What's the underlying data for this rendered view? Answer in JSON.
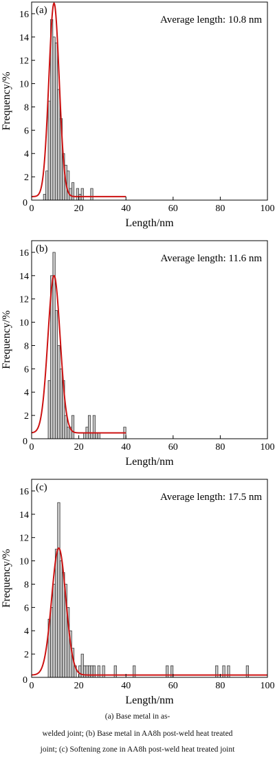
{
  "panels": [
    {
      "label": "(a)",
      "annotation": "Average length: 10.8 nm",
      "xlabel": "Length/nm",
      "ylabel": "Frequency/%"
    },
    {
      "label": "(b)",
      "annotation": "Average length: 11.6 nm",
      "xlabel": "Length/nm",
      "ylabel": "Frequency/%"
    },
    {
      "label": "(c)",
      "annotation": "Average length: 17.5 nm",
      "xlabel": "Length/nm",
      "ylabel": "Frequency/%"
    }
  ],
  "caption": {
    "line1": "(a) Base metal in as-",
    "line2": "welded joint; (b) Base metal in AA8h post-weld heat treated",
    "line3": "joint; (c) Softening zone in AA8h post-weld heat treated joint"
  },
  "chart_data": [
    {
      "type": "bar",
      "title": "",
      "label": "(a)",
      "annotation": "Average length: 10.8 nm",
      "xlabel": "Length/nm",
      "ylabel": "Frequency/%",
      "xlim": [
        0,
        100
      ],
      "ylim": [
        0,
        17
      ],
      "xticks": [
        0,
        20,
        40,
        60,
        80,
        100
      ],
      "yticks": [
        2,
        4,
        6,
        8,
        10,
        12,
        14,
        16
      ],
      "bin_width": 1,
      "bars": [
        {
          "x": 5,
          "y": 0.5
        },
        {
          "x": 6,
          "y": 2.5
        },
        {
          "x": 7,
          "y": 8.5
        },
        {
          "x": 8,
          "y": 15.5
        },
        {
          "x": 9,
          "y": 14
        },
        {
          "x": 10,
          "y": 13.5
        },
        {
          "x": 11,
          "y": 9.5
        },
        {
          "x": 12,
          "y": 7
        },
        {
          "x": 13,
          "y": 4
        },
        {
          "x": 14,
          "y": 3
        },
        {
          "x": 15,
          "y": 2.5
        },
        {
          "x": 16,
          "y": 1
        },
        {
          "x": 17,
          "y": 1.5
        },
        {
          "x": 19,
          "y": 1
        },
        {
          "x": 20,
          "y": 0.5
        },
        {
          "x": 21,
          "y": 1
        },
        {
          "x": 25,
          "y": 1
        }
      ],
      "fit": {
        "type": "gaussian",
        "baseline": 0.3,
        "amplitude": 16.6,
        "mean": 9.5,
        "sigma": 2.2,
        "x_range": [
          0,
          40
        ],
        "color": "#cc1111"
      },
      "grid": false
    },
    {
      "type": "bar",
      "title": "",
      "label": "(b)",
      "annotation": "Average length: 11.6 nm",
      "xlabel": "Length/nm",
      "ylabel": "Frequency/%",
      "xlim": [
        0,
        100
      ],
      "ylim": [
        0,
        17
      ],
      "xticks": [
        0,
        20,
        40,
        60,
        80,
        100
      ],
      "yticks": [
        2,
        4,
        6,
        8,
        10,
        12,
        14,
        16
      ],
      "bin_width": 1,
      "bars": [
        {
          "x": 7,
          "y": 5
        },
        {
          "x": 8,
          "y": 14
        },
        {
          "x": 9,
          "y": 16
        },
        {
          "x": 10,
          "y": 11
        },
        {
          "x": 11,
          "y": 8
        },
        {
          "x": 12,
          "y": 6
        },
        {
          "x": 13,
          "y": 5
        },
        {
          "x": 14,
          "y": 2
        },
        {
          "x": 15,
          "y": 1
        },
        {
          "x": 16,
          "y": 1
        },
        {
          "x": 17,
          "y": 2
        },
        {
          "x": 22,
          "y": 0.5
        },
        {
          "x": 23,
          "y": 1
        },
        {
          "x": 24,
          "y": 2
        },
        {
          "x": 25,
          "y": 0.5
        },
        {
          "x": 26,
          "y": 2
        },
        {
          "x": 27,
          "y": 0.5
        },
        {
          "x": 28,
          "y": 0.5
        },
        {
          "x": 39,
          "y": 1
        }
      ],
      "fit": {
        "type": "gaussian",
        "baseline": 0.5,
        "amplitude": 13.5,
        "mean": 9.5,
        "sigma": 2.6,
        "x_range": [
          0,
          40
        ],
        "color": "#cc1111"
      },
      "grid": false
    },
    {
      "type": "bar",
      "title": "",
      "label": "(c)",
      "annotation": "Average length: 17.5 nm",
      "xlabel": "Length/nm",
      "ylabel": "Frequency/%",
      "xlim": [
        0,
        100
      ],
      "ylim": [
        0,
        17
      ],
      "xticks": [
        0,
        20,
        40,
        60,
        80,
        100
      ],
      "yticks": [
        2,
        4,
        6,
        8,
        10,
        12,
        14,
        16
      ],
      "bin_width": 1,
      "bars": [
        {
          "x": 7,
          "y": 5
        },
        {
          "x": 8,
          "y": 6
        },
        {
          "x": 9,
          "y": 8
        },
        {
          "x": 10,
          "y": 11
        },
        {
          "x": 11,
          "y": 15
        },
        {
          "x": 12,
          "y": 10
        },
        {
          "x": 13,
          "y": 9
        },
        {
          "x": 14,
          "y": 8
        },
        {
          "x": 15,
          "y": 6
        },
        {
          "x": 16,
          "y": 4
        },
        {
          "x": 17,
          "y": 2.5
        },
        {
          "x": 18,
          "y": 1
        },
        {
          "x": 20,
          "y": 1
        },
        {
          "x": 21,
          "y": 2
        },
        {
          "x": 22,
          "y": 1
        },
        {
          "x": 23,
          "y": 1
        },
        {
          "x": 24,
          "y": 1
        },
        {
          "x": 25,
          "y": 1
        },
        {
          "x": 26,
          "y": 1
        },
        {
          "x": 28,
          "y": 1
        },
        {
          "x": 30,
          "y": 1
        },
        {
          "x": 35,
          "y": 1
        },
        {
          "x": 43,
          "y": 1
        },
        {
          "x": 57,
          "y": 1
        },
        {
          "x": 59,
          "y": 1
        },
        {
          "x": 78,
          "y": 1
        },
        {
          "x": 81,
          "y": 1
        },
        {
          "x": 83,
          "y": 1
        },
        {
          "x": 91,
          "y": 1
        }
      ],
      "fit": {
        "type": "gaussian",
        "baseline": 0.2,
        "amplitude": 10.9,
        "mean": 11.5,
        "sigma": 3.0,
        "x_range": [
          0,
          100
        ],
        "color": "#cc1111"
      },
      "grid": false
    }
  ]
}
